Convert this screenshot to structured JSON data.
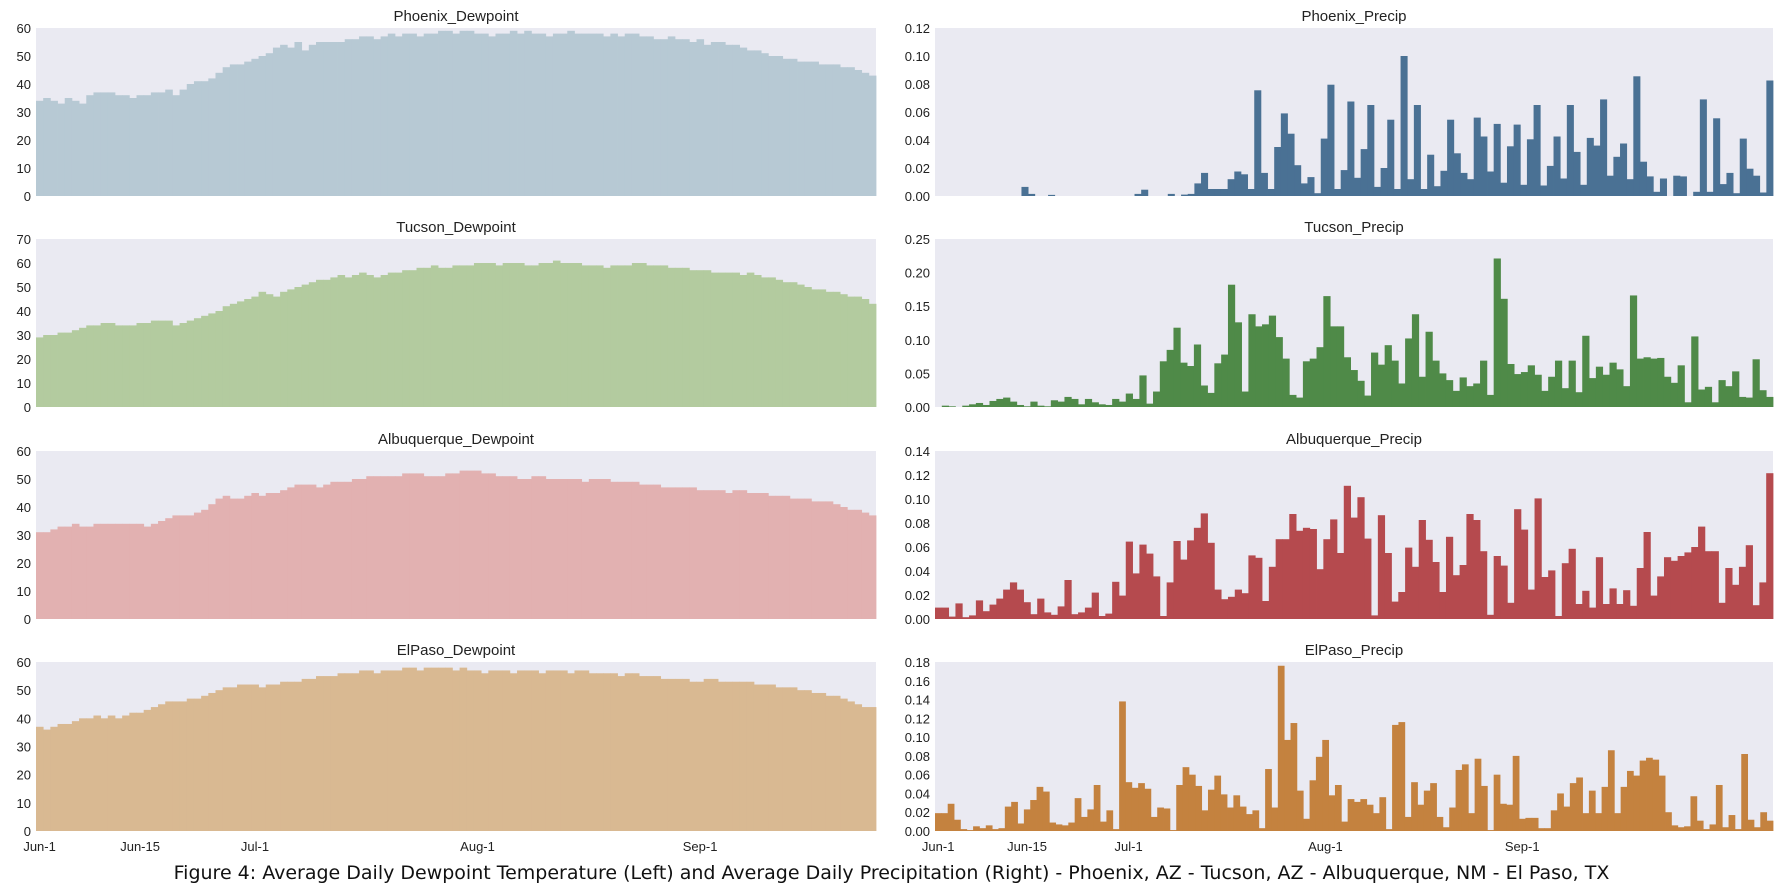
{
  "caption": "Figure 4: Average Daily Dewpoint Temperature (Left) and Average Daily Precipitation (Right) - Phoenix, AZ - Tucson, AZ - Albuquerque, NM - El Paso, TX",
  "colors": {
    "background": "#eaeaf2",
    "phoenix_dew": "#b7c9d4",
    "phoenix_precip": "#4a7194",
    "tucson_dew": "#b3cb9f",
    "tucson_precip": "#4f8a48",
    "albuquerque_dew": "#e2b1b1",
    "albuquerque_precip": "#b54a4e",
    "elpaso_dew": "#d9b992",
    "elpaso_precip": "#c4823f"
  },
  "x_ticks": {
    "labels": [
      "Jun-1",
      "Jun-15",
      "Jul-1",
      "Aug-1",
      "Sep-1"
    ],
    "day_index": [
      0,
      14,
      30,
      61,
      92
    ]
  },
  "chart_data": [
    {
      "type": "bar",
      "title": "Phoenix_Dewpoint",
      "color_key": "phoenix_dew",
      "ylim": [
        0,
        60
      ],
      "yticks": [
        "0",
        "10",
        "20",
        "30",
        "40",
        "50",
        "60"
      ],
      "ytick_values": [
        0,
        10,
        20,
        30,
        40,
        50,
        60
      ],
      "grid": false,
      "values": [
        34,
        35,
        34,
        33,
        35,
        34,
        33,
        36,
        37,
        37,
        37,
        36,
        36,
        35,
        36,
        36,
        37,
        37,
        38,
        36,
        38,
        40,
        41,
        41,
        42,
        44,
        46,
        47,
        47,
        48,
        49,
        50,
        51,
        53,
        54,
        53,
        55,
        52,
        54,
        55,
        55,
        55,
        55,
        56,
        56,
        57,
        57,
        56,
        57,
        58,
        57,
        58,
        58,
        57,
        58,
        58,
        59,
        59,
        58,
        59,
        59,
        58,
        58,
        57,
        58,
        58,
        59,
        58,
        59,
        58,
        58,
        57,
        58,
        58,
        59,
        58,
        58,
        58,
        58,
        57,
        58,
        57,
        58,
        58,
        57,
        57,
        56,
        56,
        57,
        56,
        56,
        55,
        56,
        54,
        55,
        55,
        54,
        54,
        53,
        52,
        52,
        51,
        50,
        50,
        49,
        49,
        48,
        48,
        48,
        47,
        47,
        47,
        46,
        46,
        45,
        44,
        43
      ]
    },
    {
      "type": "bar",
      "title": "Tucson_Dewpoint",
      "color_key": "tucson_dew",
      "ylim": [
        0,
        70
      ],
      "yticks": [
        "0",
        "10",
        "20",
        "30",
        "40",
        "50",
        "60",
        "70"
      ],
      "ytick_values": [
        0,
        10,
        20,
        30,
        40,
        50,
        60,
        70
      ],
      "grid": false,
      "values": [
        29,
        30,
        30,
        31,
        31,
        32,
        33,
        34,
        34,
        35,
        35,
        34,
        34,
        34,
        35,
        35,
        36,
        36,
        36,
        34,
        35,
        36,
        37,
        38,
        39,
        40,
        42,
        43,
        44,
        45,
        46,
        48,
        47,
        46,
        48,
        49,
        50,
        51,
        52,
        53,
        53,
        54,
        55,
        54,
        55,
        56,
        55,
        54,
        55,
        56,
        56,
        57,
        57,
        58,
        58,
        59,
        58,
        58,
        59,
        59,
        59,
        60,
        60,
        60,
        59,
        60,
        60,
        60,
        59,
        59,
        60,
        60,
        61,
        60,
        60,
        60,
        59,
        59,
        59,
        58,
        59,
        59,
        59,
        60,
        60,
        59,
        59,
        59,
        58,
        58,
        58,
        57,
        57,
        57,
        56,
        56,
        56,
        56,
        55,
        56,
        55,
        54,
        54,
        53,
        52,
        52,
        51,
        50,
        49,
        49,
        48,
        48,
        47,
        46,
        46,
        45,
        43
      ]
    },
    {
      "type": "bar",
      "title": "Albuquerque_Dewpoint",
      "color_key": "albuquerque_dew",
      "ylim": [
        0,
        60
      ],
      "yticks": [
        "0",
        "10",
        "20",
        "30",
        "40",
        "50",
        "60"
      ],
      "ytick_values": [
        0,
        10,
        20,
        30,
        40,
        50,
        60
      ],
      "grid": false,
      "values": [
        31,
        31,
        32,
        33,
        33,
        34,
        33,
        33,
        34,
        34,
        34,
        34,
        34,
        34,
        34,
        33,
        34,
        35,
        36,
        37,
        37,
        37,
        38,
        39,
        41,
        43,
        44,
        43,
        43,
        44,
        45,
        44,
        45,
        45,
        46,
        47,
        48,
        48,
        48,
        47,
        48,
        49,
        49,
        49,
        50,
        50,
        51,
        51,
        51,
        51,
        51,
        52,
        52,
        52,
        51,
        51,
        51,
        52,
        52,
        53,
        53,
        53,
        52,
        52,
        51,
        51,
        51,
        50,
        50,
        51,
        51,
        50,
        50,
        50,
        50,
        50,
        49,
        50,
        50,
        50,
        49,
        49,
        49,
        49,
        48,
        48,
        48,
        47,
        47,
        47,
        47,
        47,
        46,
        46,
        46,
        46,
        45,
        46,
        46,
        45,
        45,
        45,
        44,
        44,
        44,
        43,
        43,
        43,
        42,
        42,
        42,
        41,
        40,
        39,
        39,
        38,
        37
      ]
    },
    {
      "type": "bar",
      "title": "ElPaso_Dewpoint",
      "color_key": "elpaso_dew",
      "ylim": [
        0,
        60
      ],
      "yticks": [
        "0",
        "10",
        "20",
        "30",
        "40",
        "50",
        "60"
      ],
      "ytick_values": [
        0,
        10,
        20,
        30,
        40,
        50,
        60
      ],
      "grid": false,
      "values": [
        37,
        36,
        37,
        38,
        38,
        39,
        40,
        40,
        41,
        40,
        41,
        40,
        41,
        42,
        42,
        43,
        44,
        45,
        46,
        46,
        46,
        47,
        47,
        48,
        49,
        50,
        51,
        51,
        52,
        52,
        52,
        51,
        52,
        52,
        53,
        53,
        53,
        54,
        54,
        55,
        55,
        55,
        56,
        56,
        56,
        57,
        57,
        56,
        57,
        57,
        57,
        58,
        58,
        57,
        58,
        58,
        58,
        58,
        57,
        58,
        57,
        57,
        56,
        57,
        57,
        57,
        56,
        57,
        57,
        57,
        56,
        57,
        57,
        57,
        56,
        57,
        57,
        56,
        56,
        56,
        56,
        55,
        56,
        56,
        55,
        55,
        55,
        54,
        54,
        54,
        54,
        53,
        53,
        54,
        54,
        53,
        53,
        53,
        53,
        53,
        52,
        52,
        52,
        51,
        51,
        51,
        50,
        50,
        49,
        49,
        48,
        48,
        47,
        46,
        45,
        44,
        44
      ]
    },
    {
      "type": "bar",
      "title": "Phoenix_Precip",
      "color_key": "phoenix_precip",
      "ylim": [
        0,
        0.12
      ],
      "yticks": [
        "0.00",
        "0.02",
        "0.04",
        "0.06",
        "0.08",
        "0.10",
        "0.12"
      ],
      "ytick_values": [
        0,
        0.02,
        0.04,
        0.06,
        0.08,
        0.1,
        0.12
      ],
      "grid": false,
      "values": [
        0,
        0,
        0,
        0,
        0,
        0,
        0,
        0,
        0,
        0,
        0,
        0,
        0,
        0.0065,
        0.0015,
        0,
        0,
        0.0008,
        0,
        0,
        0,
        0,
        0,
        0,
        0,
        0,
        0,
        0,
        0,
        0,
        0.0015,
        0.0045,
        0,
        0,
        0,
        0.0015,
        0,
        0.001,
        0.0015,
        0.009,
        0.0165,
        0.005,
        0.005,
        0.005,
        0.012,
        0.0175,
        0.0155,
        0.005,
        0.0755,
        0.0165,
        0.005,
        0.035,
        0.059,
        0.0445,
        0.022,
        0.009,
        0.0135,
        0.002,
        0.041,
        0.0795,
        0.005,
        0.0185,
        0.0675,
        0.013,
        0.0335,
        0.065,
        0.0065,
        0.02,
        0.0545,
        0.005,
        0.1,
        0.012,
        0.065,
        0.005,
        0.0295,
        0.007,
        0.018,
        0.0545,
        0.0305,
        0.0165,
        0.012,
        0.056,
        0.0425,
        0.0175,
        0.0515,
        0.0095,
        0.0355,
        0.051,
        0.008,
        0.0405,
        0.065,
        0.0075,
        0.0215,
        0.0425,
        0.0125,
        0.065,
        0.0315,
        0.008,
        0.0415,
        0.036,
        0.069,
        0.0145,
        0.028,
        0.0375,
        0.012,
        0.0855,
        0.0245,
        0.014,
        0.003,
        0.0125,
        0,
        0.0145,
        0.014,
        0,
        0.003,
        0.069,
        0.003,
        0.0555,
        0.0085,
        0.0165,
        0.002,
        0.041,
        0.0195,
        0.0145,
        0.0025,
        0.0825
      ]
    },
    {
      "type": "bar",
      "title": "Tucson_Precip",
      "color_key": "tucson_precip",
      "ylim": [
        0,
        0.25
      ],
      "yticks": [
        "0.00",
        "0.05",
        "0.10",
        "0.15",
        "0.20",
        "0.25"
      ],
      "ytick_values": [
        0,
        0.05,
        0.1,
        0.15,
        0.2,
        0.25
      ],
      "grid": false,
      "values": [
        0,
        0.002,
        0.001,
        0,
        0.002,
        0.004,
        0.006,
        0.003,
        0.009,
        0.012,
        0.014,
        0.008,
        0.003,
        0.001,
        0.008,
        0.002,
        0.001,
        0.01,
        0.008,
        0.015,
        0.012,
        0.004,
        0.012,
        0.007,
        0.004,
        0.003,
        0.012,
        0.008,
        0.02,
        0.012,
        0.047,
        0.005,
        0.023,
        0.068,
        0.085,
        0.118,
        0.066,
        0.061,
        0.093,
        0.032,
        0.021,
        0.065,
        0.078,
        0.182,
        0.126,
        0.023,
        0.138,
        0.12,
        0.123,
        0.136,
        0.104,
        0.072,
        0.018,
        0.014,
        0.068,
        0.072,
        0.089,
        0.165,
        0.12,
        0.12,
        0.074,
        0.055,
        0.039,
        0.017,
        0.081,
        0.063,
        0.092,
        0.069,
        0.035,
        0.102,
        0.138,
        0.045,
        0.112,
        0.069,
        0.05,
        0.04,
        0.024,
        0.044,
        0.031,
        0.035,
        0.069,
        0.018,
        0.221,
        0.161,
        0.064,
        0.049,
        0.052,
        0.062,
        0.048,
        0.024,
        0.045,
        0.069,
        0.028,
        0.069,
        0.022,
        0.106,
        0.043,
        0.06,
        0.048,
        0.066,
        0.056,
        0.031,
        0.166,
        0.072,
        0.074,
        0.072,
        0.073,
        0.045,
        0.036,
        0.062,
        0.007,
        0.105,
        0.026,
        0.03,
        0.007,
        0.04,
        0.031,
        0.053,
        0.015,
        0.014,
        0.071,
        0.025,
        0.015
      ]
    },
    {
      "type": "bar",
      "title": "Albuquerque_Precip",
      "color_key": "albuquerque_precip",
      "ylim": [
        0,
        0.14
      ],
      "yticks": [
        "0.00",
        "0.02",
        "0.04",
        "0.06",
        "0.08",
        "0.10",
        "0.12",
        "0.14"
      ],
      "ytick_values": [
        0,
        0.02,
        0.04,
        0.06,
        0.08,
        0.1,
        0.12,
        0.14
      ],
      "grid": false,
      "values": [
        0.0095,
        0.0095,
        0.002,
        0.013,
        0.0015,
        0.003,
        0.0155,
        0.0065,
        0.012,
        0.017,
        0.0245,
        0.0305,
        0.0245,
        0.014,
        0.004,
        0.017,
        0.0055,
        0.0035,
        0.0105,
        0.0325,
        0.004,
        0.0055,
        0.0095,
        0.022,
        0.0025,
        0.0045,
        0.031,
        0.0195,
        0.0645,
        0.038,
        0.062,
        0.0545,
        0.0355,
        0.0025,
        0.0305,
        0.065,
        0.0495,
        0.0655,
        0.076,
        0.088,
        0.0635,
        0.0245,
        0.0165,
        0.0185,
        0.0245,
        0.0215,
        0.053,
        0.051,
        0.015,
        0.0435,
        0.0665,
        0.0665,
        0.0875,
        0.0735,
        0.076,
        0.075,
        0.0415,
        0.0665,
        0.083,
        0.055,
        0.111,
        0.0845,
        0.1015,
        0.067,
        0.003,
        0.0865,
        0.055,
        0.0145,
        0.0225,
        0.0595,
        0.0435,
        0.0825,
        0.066,
        0.0475,
        0.0225,
        0.0685,
        0.0365,
        0.045,
        0.0875,
        0.0825,
        0.0565,
        0.0035,
        0.0525,
        0.0445,
        0.0135,
        0.0915,
        0.0745,
        0.0245,
        0.1005,
        0.035,
        0.0405,
        0.0025,
        0.0465,
        0.0585,
        0.0125,
        0.0235,
        0.0095,
        0.0515,
        0.0125,
        0.0255,
        0.0125,
        0.024,
        0.011,
        0.0425,
        0.0725,
        0.0195,
        0.0355,
        0.0515,
        0.0485,
        0.0525,
        0.0555,
        0.06,
        0.077,
        0.0565,
        0.0565,
        0.0135,
        0.0425,
        0.0285,
        0.0435,
        0.0615,
        0.0115,
        0.0305,
        0.1215
      ]
    },
    {
      "type": "bar",
      "title": "ElPaso_Precip",
      "color_key": "elpaso_precip",
      "ylim": [
        0,
        0.18
      ],
      "yticks": [
        "0.00",
        "0.02",
        "0.04",
        "0.06",
        "0.08",
        "0.10",
        "0.12",
        "0.14",
        "0.16",
        "0.18"
      ],
      "ytick_values": [
        0,
        0.02,
        0.04,
        0.06,
        0.08,
        0.1,
        0.12,
        0.14,
        0.16,
        0.18
      ],
      "grid": false,
      "values": [
        0.019,
        0.019,
        0.029,
        0.012,
        0.002,
        0.001,
        0.005,
        0.003,
        0.006,
        0.002,
        0.003,
        0.026,
        0.031,
        0.008,
        0.023,
        0.033,
        0.047,
        0.042,
        0.009,
        0.007,
        0.006,
        0.009,
        0.035,
        0.015,
        0.023,
        0.049,
        0.01,
        0.022,
        0.002,
        0.138,
        0.052,
        0.046,
        0.051,
        0.045,
        0.015,
        0.025,
        0.024,
        0.001,
        0.049,
        0.068,
        0.06,
        0.048,
        0.022,
        0.044,
        0.059,
        0.039,
        0.025,
        0.038,
        0.026,
        0.018,
        0.022,
        0.003,
        0.066,
        0.025,
        0.176,
        0.097,
        0.115,
        0.043,
        0.013,
        0.054,
        0.079,
        0.097,
        0.038,
        0.049,
        0.01,
        0.034,
        0.031,
        0.034,
        0.028,
        0.019,
        0.036,
        0.002,
        0.113,
        0.116,
        0.015,
        0.052,
        0.028,
        0.043,
        0.051,
        0.015,
        0.004,
        0.025,
        0.065,
        0.071,
        0.019,
        0.077,
        0.048,
        0.001,
        0.06,
        0.029,
        0.028,
        0.08,
        0.013,
        0.014,
        0.014,
        0.003,
        0.003,
        0.022,
        0.04,
        0.026,
        0.051,
        0.057,
        0.019,
        0.043,
        0.019,
        0.047,
        0.086,
        0.019,
        0.047,
        0.064,
        0.059,
        0.075,
        0.078,
        0.076,
        0.059,
        0.02,
        0.006,
        0.004,
        0.005,
        0.037,
        0.011,
        0.002,
        0.007,
        0.049,
        0.004,
        0.017,
        0.002,
        0.082,
        0.012,
        0.004,
        0.02,
        0.011
      ]
    }
  ]
}
